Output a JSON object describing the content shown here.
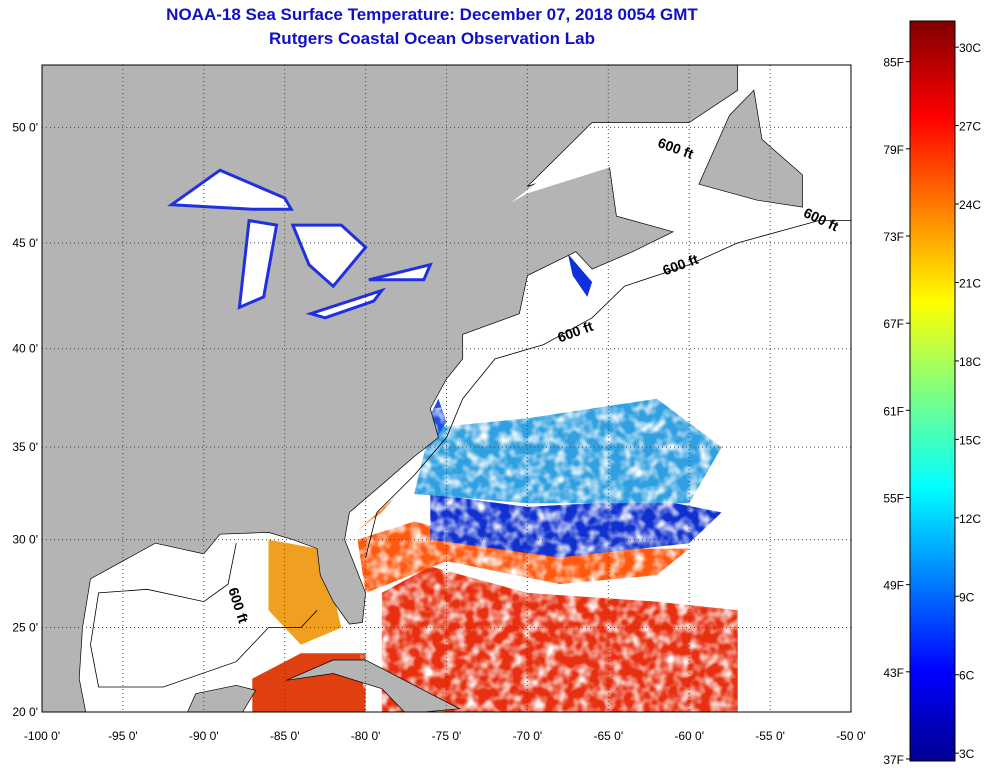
{
  "title": {
    "line1": "NOAA-18 Sea Surface Temperature:  December 07, 2018 0054 GMT",
    "line2": "Rutgers Coastal Ocean Observation Lab"
  },
  "map": {
    "lon_labels": [
      "-100 0'",
      "-95 0'",
      "-90 0'",
      "-85 0'",
      "-80 0'",
      "-75 0'",
      "-70 0'",
      "-65 0'",
      "-60 0'",
      "-55 0'",
      "-50 0'"
    ],
    "lon_values": [
      -100,
      -95,
      -90,
      -85,
      -80,
      -75,
      -70,
      -65,
      -60,
      -55,
      -50
    ],
    "lat_labels": [
      "20 0'",
      "25 0'",
      "30 0'",
      "35 0'",
      "40 0'",
      "45 0'",
      "50 0'"
    ],
    "lat_values": [
      20,
      25,
      30,
      35,
      40,
      45,
      50
    ],
    "extent": {
      "lon": [
        -100,
        -50
      ],
      "lat": [
        20,
        52.5
      ]
    },
    "contour_labels": [
      "600 ft",
      "600 ft",
      "600 ft",
      "600 ft",
      "600 ft"
    ],
    "colors": {
      "land": "#b4b4b4",
      "ocean_nodata": "#ffffff",
      "title": "#1010c8"
    }
  },
  "colorbar": {
    "range_c": [
      2.7,
      31
    ],
    "f_labels": [
      "85F",
      "79F",
      "73F",
      "67F",
      "61F",
      "55F",
      "49F",
      "43F",
      "37F"
    ],
    "f_values": [
      85,
      79,
      73,
      67,
      61,
      55,
      49,
      43,
      37
    ],
    "c_labels": [
      "30C",
      "27C",
      "24C",
      "21C",
      "18C",
      "15C",
      "12C",
      "9C",
      "6C",
      "3C"
    ],
    "c_values": [
      30,
      27,
      24,
      21,
      18,
      15,
      12,
      9,
      6,
      3
    ]
  }
}
